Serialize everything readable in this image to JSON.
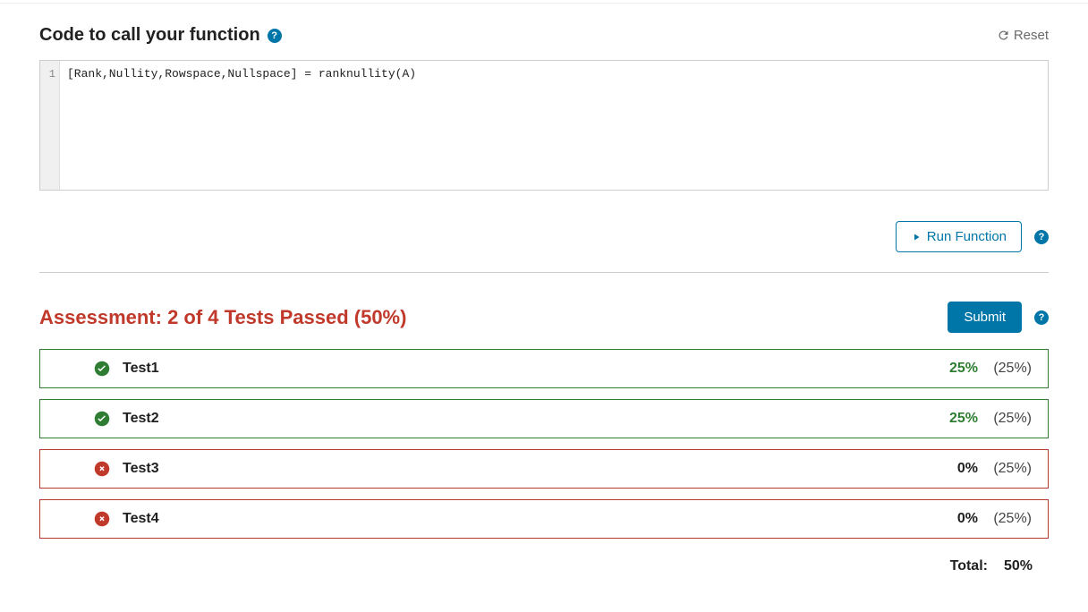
{
  "colors": {
    "pass_border": "#2e7d32",
    "fail_border": "#b23a2f",
    "pass_text": "#2e7d32",
    "accent": "#0076a8",
    "assessment_title": "#c0392b"
  },
  "code_section": {
    "title": "Code to call your function",
    "reset_label": "Reset",
    "lines": [
      "1"
    ],
    "code": "[Rank,Nullity,Rowspace,Nullspace] = ranknullity(A)"
  },
  "run_button_label": "Run Function",
  "assessment": {
    "title": "Assessment: 2 of 4 Tests Passed (50%)",
    "submit_label": "Submit",
    "tests": [
      {
        "name": "Test1",
        "passed": true,
        "score": "25%",
        "weight": "(25%)"
      },
      {
        "name": "Test2",
        "passed": true,
        "score": "25%",
        "weight": "(25%)"
      },
      {
        "name": "Test3",
        "passed": false,
        "score": "0%",
        "weight": "(25%)"
      },
      {
        "name": "Test4",
        "passed": false,
        "score": "0%",
        "weight": "(25%)"
      }
    ],
    "total_label": "Total:",
    "total_value": "50%"
  }
}
